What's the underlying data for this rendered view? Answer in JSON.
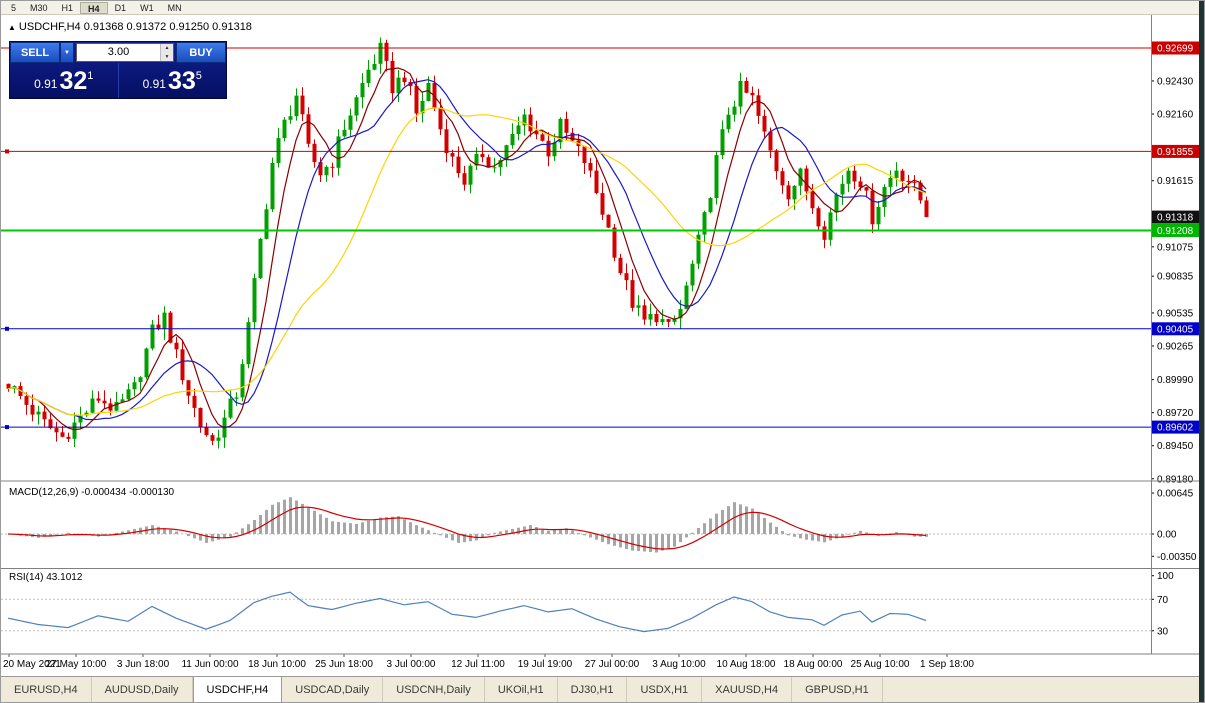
{
  "toolbar": {
    "timeframes": [
      "5",
      "M30",
      "H1",
      "H4",
      "D1",
      "W1",
      "MN"
    ],
    "active": "H4"
  },
  "chart_header": {
    "icon": "▲",
    "title": "USDCHF,H4 0.91368 0.91372 0.91250 0.91318"
  },
  "trade_panel": {
    "sell_label": "SELL",
    "buy_label": "BUY",
    "volume": "3.00",
    "sell_price": {
      "prefix": "0.91",
      "big": "32",
      "sup": "1"
    },
    "buy_price": {
      "prefix": "0.91",
      "big": "33",
      "sup": "5"
    }
  },
  "chart_data": [
    {
      "type": "candlestick",
      "title": "USDCHF,H4",
      "ohlc_header": [
        0.91368,
        0.91372,
        0.9125,
        0.91318
      ],
      "num_candles": 154,
      "ylim": [
        0.89178,
        0.9292
      ],
      "colors": {
        "up": "#00a000",
        "down": "#d40000"
      },
      "close_waypoints": [
        [
          0,
          0.8996
        ],
        [
          3,
          0.8979
        ],
        [
          6,
          0.8963
        ],
        [
          9,
          0.8952
        ],
        [
          12,
          0.8968
        ],
        [
          15,
          0.8984
        ],
        [
          18,
          0.8974
        ],
        [
          21,
          0.8992
        ],
        [
          24,
          0.9038
        ],
        [
          26,
          0.905
        ],
        [
          28,
          0.9018
        ],
        [
          30,
          0.8988
        ],
        [
          32,
          0.8962
        ],
        [
          34,
          0.8948
        ],
        [
          36,
          0.8966
        ],
        [
          38,
          0.8988
        ],
        [
          40,
          0.9042
        ],
        [
          42,
          0.9112
        ],
        [
          44,
          0.9176
        ],
        [
          46,
          0.9208
        ],
        [
          48,
          0.9232
        ],
        [
          50,
          0.9186
        ],
        [
          52,
          0.9168
        ],
        [
          54,
          0.9178
        ],
        [
          56,
          0.9206
        ],
        [
          58,
          0.9228
        ],
        [
          60,
          0.9252
        ],
        [
          62,
          0.9268
        ],
        [
          64,
          0.9238
        ],
        [
          66,
          0.9248
        ],
        [
          68,
          0.9216
        ],
        [
          70,
          0.924
        ],
        [
          72,
          0.9204
        ],
        [
          74,
          0.9178
        ],
        [
          76,
          0.9162
        ],
        [
          79,
          0.9184
        ],
        [
          81,
          0.9172
        ],
        [
          84,
          0.9196
        ],
        [
          86,
          0.9214
        ],
        [
          88,
          0.92
        ],
        [
          90,
          0.9186
        ],
        [
          92,
          0.9206
        ],
        [
          94,
          0.9192
        ],
        [
          96,
          0.9178
        ],
        [
          98,
          0.9152
        ],
        [
          100,
          0.9122
        ],
        [
          102,
          0.9088
        ],
        [
          104,
          0.9062
        ],
        [
          106,
          0.9046
        ],
        [
          108,
          0.9052
        ],
        [
          110,
          0.904
        ],
        [
          112,
          0.9056
        ],
        [
          114,
          0.9092
        ],
        [
          116,
          0.913
        ],
        [
          118,
          0.9178
        ],
        [
          120,
          0.9218
        ],
        [
          122,
          0.9236
        ],
        [
          124,
          0.9228
        ],
        [
          126,
          0.9198
        ],
        [
          128,
          0.9172
        ],
        [
          130,
          0.9152
        ],
        [
          132,
          0.9166
        ],
        [
          134,
          0.9142
        ],
        [
          136,
          0.912
        ],
        [
          138,
          0.915
        ],
        [
          140,
          0.9172
        ],
        [
          142,
          0.9162
        ],
        [
          144,
          0.9132
        ],
        [
          146,
          0.9156
        ],
        [
          148,
          0.9172
        ],
        [
          150,
          0.9162
        ],
        [
          152,
          0.9146
        ],
        [
          153,
          0.91318
        ]
      ],
      "moving_averages": [
        {
          "period": 6,
          "color": "#8b0000"
        },
        {
          "period": 12,
          "color": "#1919c8"
        },
        {
          "period": 26,
          "color": "#ffd400"
        }
      ],
      "horizontal_lines": [
        {
          "price": 0.92699,
          "color": "#d20000",
          "width": 1,
          "handles": false
        },
        {
          "price": 0.91855,
          "color": "#d20000",
          "width": 1,
          "handles": true
        },
        {
          "price": 0.91208,
          "color": "#00c800",
          "width": 2,
          "handles": false
        },
        {
          "price": 0.90405,
          "color": "#0000c8",
          "width": 1,
          "handles": true
        },
        {
          "price": 0.89602,
          "color": "#0000c8",
          "width": 1,
          "handles": true
        }
      ]
    },
    {
      "type": "macd-histogram",
      "label": "MACD(12,26,9) -0.000434 -0.000130",
      "ylim": [
        -0.00503,
        0.00787
      ],
      "colors": {
        "histogram": "#a6a6a6",
        "signal": "#d00000"
      },
      "axis_ticks": [
        {
          "value": 0.00645,
          "text": "0.00645"
        },
        {
          "value": 0.0,
          "text": "0.00"
        },
        {
          "value": -0.0035,
          "text": "-0.00350"
        }
      ],
      "waypoints": [
        [
          0,
          0.0
        ],
        [
          5,
          -0.0006
        ],
        [
          10,
          0.0002
        ],
        [
          15,
          -0.0004
        ],
        [
          20,
          0.0006
        ],
        [
          24,
          0.0014
        ],
        [
          28,
          0.0004
        ],
        [
          33,
          -0.0014
        ],
        [
          37,
          -0.0004
        ],
        [
          41,
          0.0022
        ],
        [
          44,
          0.0046
        ],
        [
          47,
          0.0058
        ],
        [
          50,
          0.0042
        ],
        [
          54,
          0.002
        ],
        [
          58,
          0.0016
        ],
        [
          62,
          0.0026
        ],
        [
          65,
          0.0028
        ],
        [
          68,
          0.0014
        ],
        [
          72,
          -0.0002
        ],
        [
          75,
          -0.0014
        ],
        [
          78,
          -0.001
        ],
        [
          81,
          0.0002
        ],
        [
          84,
          0.0008
        ],
        [
          87,
          0.0014
        ],
        [
          90,
          0.0005
        ],
        [
          93,
          0.0009
        ],
        [
          96,
          -0.0002
        ],
        [
          100,
          -0.0016
        ],
        [
          104,
          -0.0026
        ],
        [
          108,
          -0.0029
        ],
        [
          111,
          -0.002
        ],
        [
          114,
          0.0002
        ],
        [
          118,
          0.0032
        ],
        [
          121,
          0.005
        ],
        [
          124,
          0.004
        ],
        [
          127,
          0.0018
        ],
        [
          130,
          -0.0002
        ],
        [
          133,
          -0.0009
        ],
        [
          136,
          -0.0013
        ],
        [
          139,
          -0.0004
        ],
        [
          142,
          0.0005
        ],
        [
          145,
          -0.0003
        ],
        [
          148,
          0.0003
        ],
        [
          151,
          -0.0004
        ],
        [
          153,
          -0.000434
        ]
      ]
    },
    {
      "type": "line",
      "label": "RSI(14) 43.1012",
      "ylim": [
        3,
        106
      ],
      "color": "#4f81bd",
      "levels": [
        {
          "value": 100,
          "text": "100",
          "dashed": false
        },
        {
          "value": 70,
          "text": "70",
          "dashed": true
        },
        {
          "value": 30,
          "text": "30",
          "dashed": true
        }
      ],
      "waypoints": [
        [
          0,
          46
        ],
        [
          5,
          38
        ],
        [
          10,
          34
        ],
        [
          15,
          49
        ],
        [
          20,
          42
        ],
        [
          24,
          61
        ],
        [
          28,
          46
        ],
        [
          33,
          32
        ],
        [
          37,
          43
        ],
        [
          41,
          66
        ],
        [
          44,
          74
        ],
        [
          47,
          79
        ],
        [
          50,
          62
        ],
        [
          54,
          57
        ],
        [
          58,
          65
        ],
        [
          62,
          71
        ],
        [
          66,
          63
        ],
        [
          70,
          67
        ],
        [
          74,
          51
        ],
        [
          78,
          47
        ],
        [
          82,
          55
        ],
        [
          86,
          62
        ],
        [
          90,
          54
        ],
        [
          94,
          58
        ],
        [
          98,
          45
        ],
        [
          102,
          35
        ],
        [
          106,
          29
        ],
        [
          110,
          33
        ],
        [
          114,
          46
        ],
        [
          118,
          63
        ],
        [
          121,
          73
        ],
        [
          124,
          67
        ],
        [
          127,
          54
        ],
        [
          130,
          47
        ],
        [
          134,
          44
        ],
        [
          136,
          37
        ],
        [
          139,
          50
        ],
        [
          142,
          55
        ],
        [
          144,
          41
        ],
        [
          147,
          52
        ],
        [
          150,
          51
        ],
        [
          153,
          43.1
        ]
      ]
    }
  ],
  "price_axis": {
    "ticks": [
      0.9243,
      0.9216,
      0.91615,
      0.91075,
      0.90835,
      0.90535,
      0.90265,
      0.8999,
      0.8972,
      0.8945,
      0.8918
    ],
    "badges": [
      {
        "price": 0.92699,
        "text": "0.92699",
        "color": "#c80000"
      },
      {
        "price": 0.91855,
        "text": "0.91855",
        "color": "#c80000"
      },
      {
        "price": 0.91318,
        "text": "0.91318",
        "color": "#111111"
      },
      {
        "price": 0.91208,
        "text": "0.91208",
        "color": "#00b400"
      },
      {
        "price": 0.90405,
        "text": "0.90405",
        "color": "#0000c8"
      },
      {
        "price": 0.89602,
        "text": "0.89602",
        "color": "#0000c8"
      }
    ]
  },
  "time_axis": {
    "labels": [
      "20 May 2021",
      "27 May 10:00",
      "3 Jun 18:00",
      "11 Jun 00:00",
      "18 Jun 10:00",
      "25 Jun 18:00",
      "3 Jul 00:00",
      "12 Jul 11:00",
      "19 Jul 19:00",
      "27 Jul 00:00",
      "3 Aug 10:00",
      "10 Aug 18:00",
      "18 Aug 00:00",
      "25 Aug 10:00",
      "1 Sep 18:00"
    ]
  },
  "tabs": {
    "items": [
      "EURUSD,H4",
      "AUDUSD,Daily",
      "USDCHF,H4",
      "USDCAD,Daily",
      "USDCNH,Daily",
      "UKOil,H1",
      "DJ30,H1",
      "USDX,H1",
      "XAUUSD,H4",
      "GBPUSD,H1"
    ],
    "active": "USDCHF,H4"
  }
}
